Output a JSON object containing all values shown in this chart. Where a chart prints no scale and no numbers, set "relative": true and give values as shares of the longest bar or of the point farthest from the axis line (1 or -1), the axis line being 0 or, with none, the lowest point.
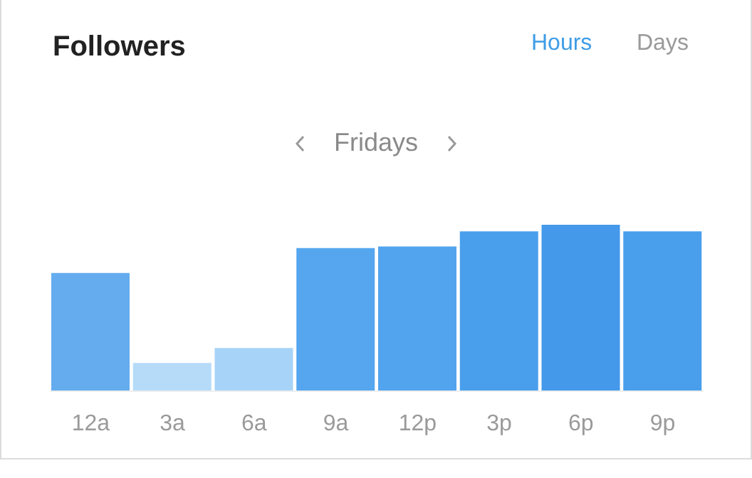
{
  "chart_data": {
    "type": "bar",
    "title": "Followers",
    "annotations": [
      "Hours",
      "Days",
      "Fridays"
    ],
    "categories": [
      "12a",
      "3a",
      "6a",
      "9a",
      "12p",
      "3p",
      "6p",
      "9p"
    ],
    "values": [
      0.71,
      0.17,
      0.26,
      0.86,
      0.87,
      0.96,
      1,
      0.96
    ],
    "colors": [
      "#64acee",
      "#b5dbf9",
      "#a8d3f8",
      "#55a6ee",
      "#53a4ee",
      "#4a9fec",
      "#4499ea",
      "#4a9fec"
    ],
    "relative": true,
    "grid": false,
    "legend": false
  }
}
